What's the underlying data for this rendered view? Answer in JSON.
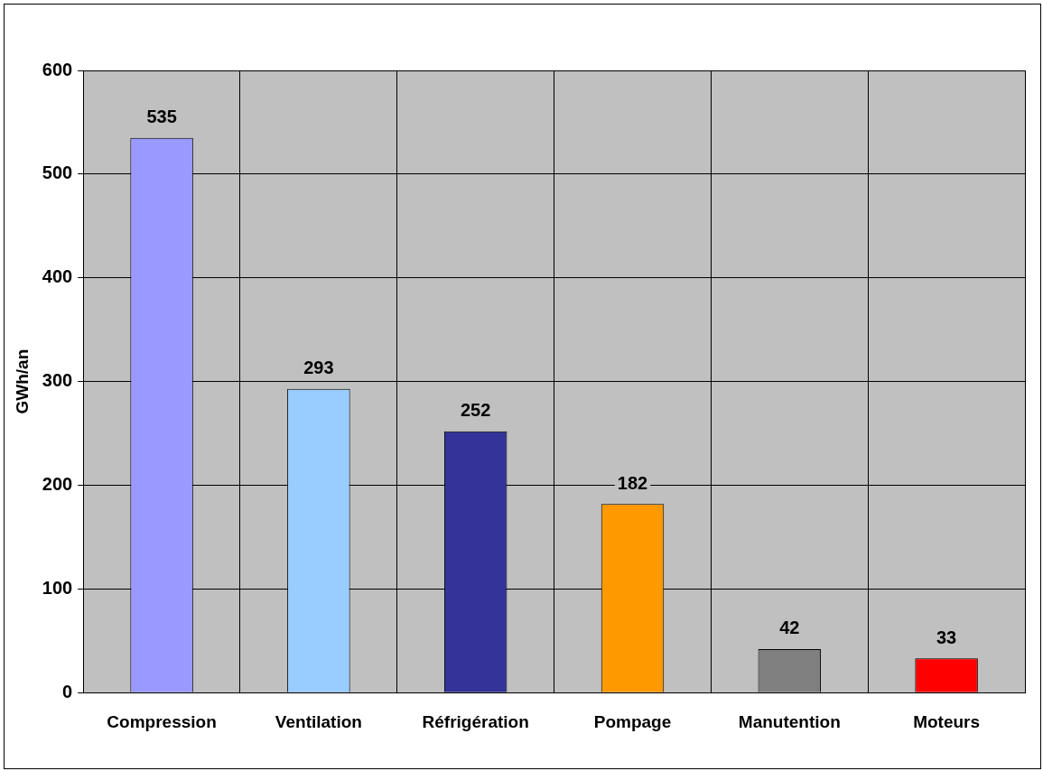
{
  "chart_data": {
    "type": "bar",
    "ylabel": "GWh/an",
    "categories": [
      "Compression",
      "Ventilation",
      "Réfrigération",
      "Pompage",
      "Manutention",
      "Moteurs"
    ],
    "values": [
      535,
      293,
      252,
      182,
      42,
      33
    ],
    "colors": [
      "#9999ff",
      "#99ccff",
      "#333399",
      "#ff9900",
      "#808080",
      "#ff0000"
    ],
    "ylim": [
      0,
      600
    ],
    "yticks": [
      0,
      100,
      200,
      300,
      400,
      500,
      600
    ],
    "grid": true,
    "data_labels": true,
    "legend": false
  }
}
